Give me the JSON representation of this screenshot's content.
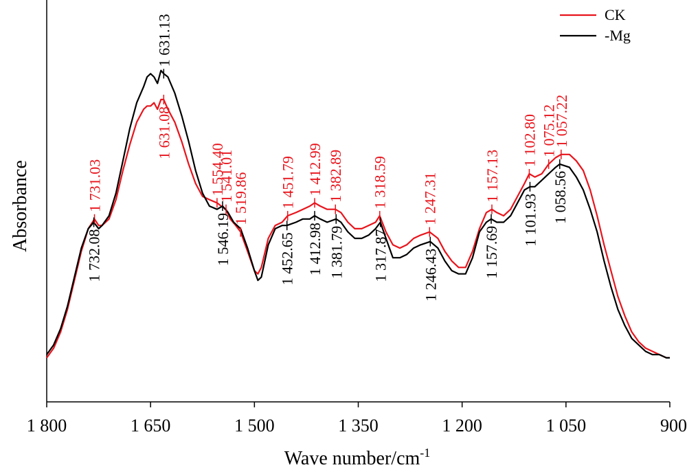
{
  "chart_data": {
    "type": "line",
    "title": "",
    "xlabel": "Wave number/cm",
    "xlabel_sup": "-1",
    "ylabel": "Absorbance",
    "xlim": [
      1800,
      900
    ],
    "x_reversed": true,
    "ylim": [
      0,
      1
    ],
    "y_ticks_shown": false,
    "grid": false,
    "legend_position": "top-right",
    "x_ticks": [
      {
        "value": 1800,
        "label": "1 800"
      },
      {
        "value": 1650,
        "label": "1 650"
      },
      {
        "value": 1500,
        "label": "1 500"
      },
      {
        "value": 1350,
        "label": "1 350"
      },
      {
        "value": 1200,
        "label": "1 200"
      },
      {
        "value": 1050,
        "label": "1 050"
      },
      {
        "value": 900,
        "label": "900"
      }
    ],
    "series": [
      {
        "name": "CK",
        "color": "#e8141c",
        "x": [
          1800,
          1790,
          1780,
          1770,
          1760,
          1750,
          1740,
          1731,
          1725,
          1720,
          1710,
          1700,
          1690,
          1680,
          1670,
          1660,
          1655,
          1650,
          1645,
          1640,
          1635,
          1631,
          1625,
          1615,
          1605,
          1595,
          1585,
          1575,
          1565,
          1554,
          1548,
          1541,
          1535,
          1527,
          1520,
          1510,
          1500,
          1495,
          1490,
          1480,
          1470,
          1460,
          1452,
          1440,
          1430,
          1420,
          1413,
          1405,
          1395,
          1383,
          1375,
          1365,
          1355,
          1345,
          1335,
          1325,
          1319,
          1310,
          1300,
          1290,
          1280,
          1270,
          1260,
          1247,
          1235,
          1225,
          1215,
          1205,
          1195,
          1185,
          1175,
          1165,
          1157,
          1150,
          1140,
          1130,
          1120,
          1110,
          1103,
          1095,
          1085,
          1075,
          1065,
          1057,
          1045,
          1035,
          1025,
          1015,
          1005,
          995,
          985,
          975,
          965,
          955,
          945,
          935,
          925,
          915,
          905,
          900
        ],
        "y": [
          0.03,
          0.06,
          0.11,
          0.18,
          0.27,
          0.36,
          0.43,
          0.46,
          0.44,
          0.44,
          0.46,
          0.52,
          0.61,
          0.69,
          0.76,
          0.8,
          0.81,
          0.81,
          0.82,
          0.8,
          0.83,
          0.83,
          0.8,
          0.76,
          0.7,
          0.63,
          0.57,
          0.53,
          0.52,
          0.51,
          0.5,
          0.49,
          0.46,
          0.44,
          0.42,
          0.36,
          0.3,
          0.29,
          0.31,
          0.4,
          0.44,
          0.45,
          0.47,
          0.48,
          0.49,
          0.5,
          0.51,
          0.5,
          0.49,
          0.49,
          0.48,
          0.45,
          0.43,
          0.43,
          0.44,
          0.45,
          0.47,
          0.42,
          0.38,
          0.37,
          0.38,
          0.4,
          0.41,
          0.42,
          0.4,
          0.36,
          0.33,
          0.31,
          0.31,
          0.36,
          0.43,
          0.48,
          0.49,
          0.48,
          0.47,
          0.49,
          0.53,
          0.57,
          0.6,
          0.59,
          0.6,
          0.63,
          0.65,
          0.66,
          0.66,
          0.64,
          0.61,
          0.55,
          0.47,
          0.38,
          0.3,
          0.22,
          0.16,
          0.11,
          0.08,
          0.06,
          0.05,
          0.04,
          0.03,
          0.03
        ]
      },
      {
        "name": "-Mg",
        "color": "#000000",
        "x": [
          1800,
          1790,
          1780,
          1770,
          1760,
          1750,
          1740,
          1732,
          1725,
          1720,
          1710,
          1700,
          1690,
          1680,
          1670,
          1660,
          1655,
          1650,
          1645,
          1640,
          1635,
          1631,
          1625,
          1615,
          1605,
          1595,
          1585,
          1575,
          1565,
          1554,
          1546,
          1538,
          1530,
          1520,
          1510,
          1500,
          1495,
          1490,
          1480,
          1470,
          1460,
          1453,
          1440,
          1430,
          1420,
          1413,
          1405,
          1395,
          1382,
          1375,
          1365,
          1355,
          1345,
          1335,
          1325,
          1318,
          1310,
          1300,
          1290,
          1280,
          1270,
          1260,
          1246,
          1235,
          1225,
          1215,
          1205,
          1195,
          1185,
          1175,
          1165,
          1158,
          1150,
          1140,
          1130,
          1120,
          1110,
          1102,
          1095,
          1085,
          1075,
          1065,
          1059,
          1045,
          1035,
          1025,
          1015,
          1005,
          995,
          985,
          975,
          965,
          955,
          945,
          935,
          925,
          915,
          905,
          900
        ],
        "y": [
          0.04,
          0.07,
          0.12,
          0.19,
          0.28,
          0.37,
          0.43,
          0.45,
          0.43,
          0.44,
          0.47,
          0.54,
          0.64,
          0.74,
          0.82,
          0.87,
          0.9,
          0.91,
          0.9,
          0.88,
          0.92,
          0.91,
          0.9,
          0.85,
          0.78,
          0.7,
          0.61,
          0.54,
          0.5,
          0.49,
          0.5,
          0.48,
          0.45,
          0.43,
          0.37,
          0.3,
          0.27,
          0.28,
          0.38,
          0.43,
          0.44,
          0.44,
          0.45,
          0.46,
          0.46,
          0.47,
          0.46,
          0.45,
          0.46,
          0.45,
          0.42,
          0.4,
          0.4,
          0.41,
          0.43,
          0.45,
          0.4,
          0.34,
          0.34,
          0.35,
          0.37,
          0.38,
          0.39,
          0.37,
          0.33,
          0.3,
          0.29,
          0.29,
          0.34,
          0.42,
          0.45,
          0.46,
          0.45,
          0.45,
          0.47,
          0.51,
          0.55,
          0.56,
          0.56,
          0.58,
          0.6,
          0.62,
          0.63,
          0.62,
          0.59,
          0.55,
          0.49,
          0.42,
          0.33,
          0.25,
          0.18,
          0.13,
          0.09,
          0.07,
          0.05,
          0.04,
          0.04,
          0.03,
          0.03
        ]
      }
    ],
    "annotations": [
      {
        "series": "CK",
        "x": 1731,
        "text": "1 731.03"
      },
      {
        "series": "CK",
        "x": 1631,
        "text": "1 631.08"
      },
      {
        "series": "CK",
        "x": 1554,
        "text": "1 554.40"
      },
      {
        "series": "CK",
        "x": 1541,
        "text": "1 541.01"
      },
      {
        "series": "CK",
        "x": 1520,
        "text": "1 519.86"
      },
      {
        "series": "CK",
        "x": 1452,
        "text": "1 451.79"
      },
      {
        "series": "CK",
        "x": 1413,
        "text": "1 412.99"
      },
      {
        "series": "CK",
        "x": 1383,
        "text": "1 382.89"
      },
      {
        "series": "CK",
        "x": 1319,
        "text": "1 318.59"
      },
      {
        "series": "CK",
        "x": 1247,
        "text": "1 247.31"
      },
      {
        "series": "CK",
        "x": 1157,
        "text": "1 157.13"
      },
      {
        "series": "CK",
        "x": 1103,
        "text": "1 102.80"
      },
      {
        "series": "CK",
        "x": 1075,
        "text": "1 075.12"
      },
      {
        "series": "CK",
        "x": 1057,
        "text": "1 057.22"
      },
      {
        "series": "-Mg",
        "x": 1732,
        "text": "1 732.08"
      },
      {
        "series": "-Mg",
        "x": 1631,
        "text": "1 631.13"
      },
      {
        "series": "-Mg",
        "x": 1546,
        "text": "1 546.19"
      },
      {
        "series": "-Mg",
        "x": 1453,
        "text": "1 452.65"
      },
      {
        "series": "-Mg",
        "x": 1413,
        "text": "1 412.98"
      },
      {
        "series": "-Mg",
        "x": 1382,
        "text": "1 381.79"
      },
      {
        "series": "-Mg",
        "x": 1318,
        "text": "1 317.87"
      },
      {
        "series": "-Mg",
        "x": 1246,
        "text": "1 246.43"
      },
      {
        "series": "-Mg",
        "x": 1158,
        "text": "1 157.69"
      },
      {
        "series": "-Mg",
        "x": 1102,
        "text": "1 101.93"
      },
      {
        "series": "-Mg",
        "x": 1059,
        "text": "1 058.56"
      }
    ]
  }
}
